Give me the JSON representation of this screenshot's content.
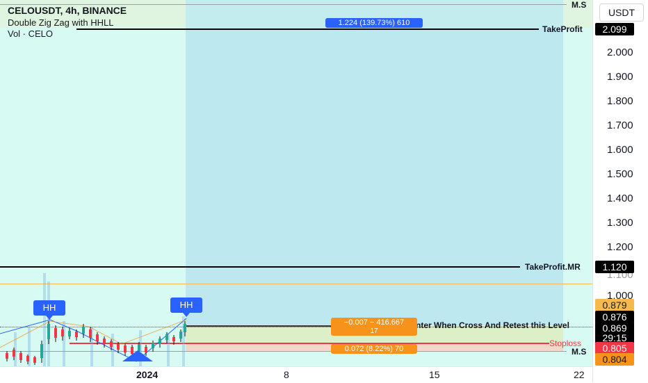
{
  "legend": {
    "symbol": "CELOUSDT, 4h, BINANCE",
    "indicator": "Double Zig Zag with HHLL",
    "volume": "Vol · CELO"
  },
  "currency_button": "USDT",
  "price_axis": [
    "2.000",
    "1.900",
    "1.800",
    "1.700",
    "1.600",
    "1.500",
    "1.400",
    "1.300",
    "1.200",
    "1.100",
    "1.000"
  ],
  "time_axis": [
    "2024",
    "8",
    "15",
    "22"
  ],
  "lines": {
    "ms_top": "M.S",
    "take_profit": "TakeProfit",
    "take_profit_mr": "TakeProfit.MR",
    "enter_level": "Enter When Cross And Retest this Level",
    "stoploss": "Stoploss",
    "ms_bottom": "M.S"
  },
  "price_tags": {
    "take_profit": "2.099",
    "take_profit_mr": "1.120",
    "t0879": "0.879",
    "t0876": "0.876",
    "t0869": "0.869",
    "countdown": "29:15",
    "stoploss": "0.805",
    "ms": "0.804"
  },
  "measure": {
    "target": "1.224 (139.73%) 610",
    "entry": "−0.007 − 416.667",
    "entry_sub": "17",
    "stop": "0.072 (8.22%) 70"
  },
  "markers": [
    "HH",
    "HH"
  ],
  "colors": {
    "accent_blue": "#2962ff",
    "orange": "#f7931a",
    "red": "#f23645",
    "black": "#000000"
  }
}
